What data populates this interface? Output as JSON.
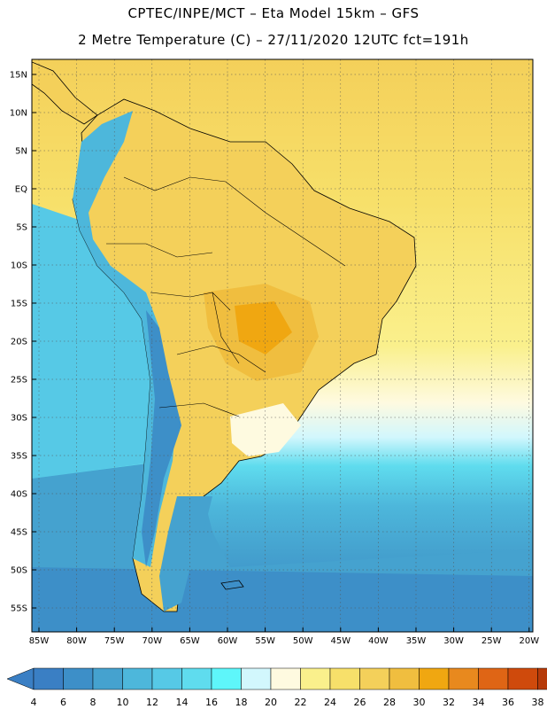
{
  "header": {
    "line1": "CPTEC/INPE/MCT –  Eta Model 15km – GFS",
    "line2": "2 Metre Temperature (C) – 27/11/2020 12UTC fct=191h"
  },
  "lat_labels": [
    "15N",
    "10N",
    "5N",
    "EQ",
    "5S",
    "10S",
    "15S",
    "20S",
    "25S",
    "30S",
    "35S",
    "40S",
    "45S",
    "50S",
    "55S"
  ],
  "lon_labels": [
    "85W",
    "80W",
    "75W",
    "70W",
    "65W",
    "60W",
    "55W",
    "50W",
    "45W",
    "40W",
    "35W",
    "30W",
    "25W",
    "20W"
  ],
  "colorbar": {
    "ticks": [
      "4",
      "6",
      "8",
      "10",
      "12",
      "14",
      "16",
      "18",
      "20",
      "22",
      "24",
      "26",
      "28",
      "30",
      "32",
      "34",
      "36",
      "38"
    ],
    "colors": [
      "#3a7fc4",
      "#3d8fc8",
      "#45a2cf",
      "#4db7db",
      "#56c9e6",
      "#5fdcee",
      "#5ef6fa",
      "#d2f7fd",
      "#fefae0",
      "#faf08c",
      "#f7e06a",
      "#f4d05a",
      "#f0be3f",
      "#f0a711",
      "#e8891e",
      "#df6515",
      "#cf4a0c",
      "#b63a09"
    ],
    "low_color": "#3a7fc4",
    "high_color": "#b63a09"
  }
}
